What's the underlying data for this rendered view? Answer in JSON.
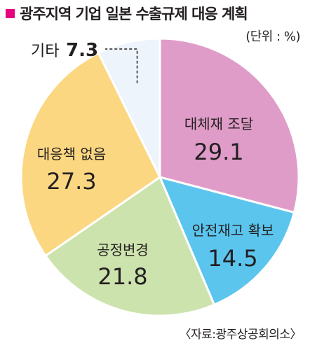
{
  "title": "광주지역 기업 일본 수출규제 대응 계획",
  "unit_label": "(단위 : %)",
  "source": "〈자료:광주상공회의소〉",
  "colors": {
    "title_marker": "#e6007e",
    "slice_outline": "#ffffff"
  },
  "chart_data": {
    "type": "pie",
    "title": "광주지역 기업 일본 수출규제 대응 계획",
    "unit": "%",
    "slices": [
      {
        "label": "대체재 조달",
        "value": 29.1,
        "color": "#e09cc8"
      },
      {
        "label": "안전재고 확보",
        "value": 14.5,
        "color": "#5bc5ee"
      },
      {
        "label": "공정변경",
        "value": 21.8,
        "color": "#cde3ae"
      },
      {
        "label": "대응책 없음",
        "value": 27.3,
        "color": "#fcd782"
      },
      {
        "label": "기타",
        "value": 7.3,
        "color": "#eef4fc"
      }
    ],
    "legend": "none"
  }
}
